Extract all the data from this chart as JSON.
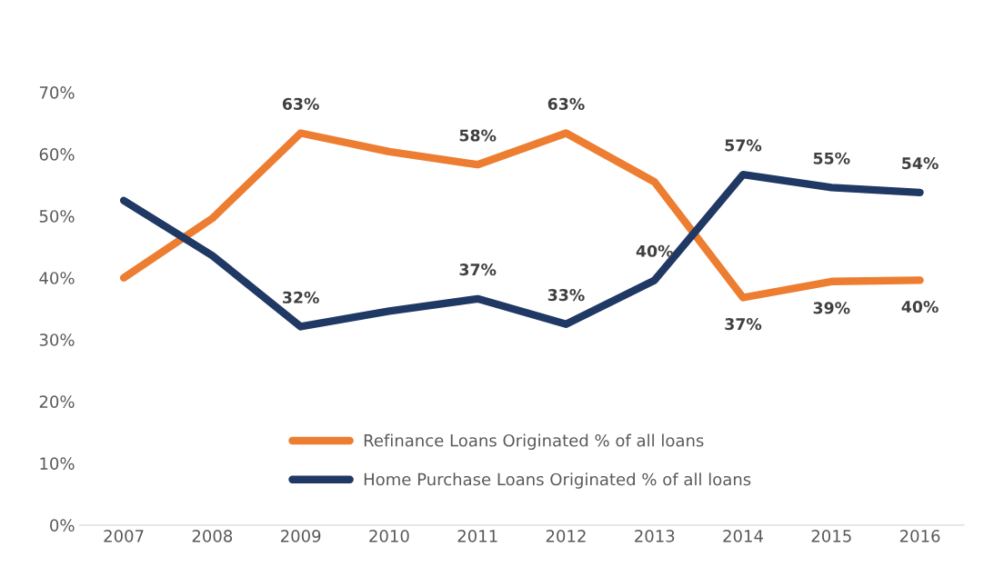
{
  "chart_data": {
    "type": "line",
    "categories": [
      "2007",
      "2008",
      "2009",
      "2010",
      "2011",
      "2012",
      "2013",
      "2014",
      "2015",
      "2016"
    ],
    "series": [
      {
        "name": "Refinance Loans Originated % of all loans",
        "color": "#ed7d31",
        "values": [
          40.0,
          49.6,
          63.4,
          60.4,
          58.3,
          63.4,
          55.5,
          36.8,
          39.4,
          39.6
        ],
        "value_labels": [
          null,
          null,
          "63%",
          null,
          "58%",
          "63%",
          null,
          "37%",
          "39%",
          "40%"
        ]
      },
      {
        "name": "Home Purchase Loans Originated % of all loans",
        "color": "#203864",
        "values": [
          52.5,
          43.6,
          32.1,
          34.6,
          36.6,
          32.5,
          39.6,
          56.7,
          54.6,
          53.8
        ],
        "value_labels": [
          null,
          null,
          "32%",
          null,
          "37%",
          "33%",
          "40%",
          "57%",
          "55%",
          "54%"
        ]
      }
    ],
    "ylim": [
      0,
      70
    ],
    "yticks": [
      {
        "value": 0,
        "label": "0%"
      },
      {
        "value": 10,
        "label": "10%"
      },
      {
        "value": 20,
        "label": "20%"
      },
      {
        "value": 30,
        "label": "30%"
      },
      {
        "value": 40,
        "label": "40%"
      },
      {
        "value": 50,
        "label": "50%"
      },
      {
        "value": 60,
        "label": "60%"
      },
      {
        "value": 70,
        "label": "70%"
      }
    ],
    "grid": false,
    "legend": "bottom",
    "marker": "none",
    "line_style": "solid"
  }
}
